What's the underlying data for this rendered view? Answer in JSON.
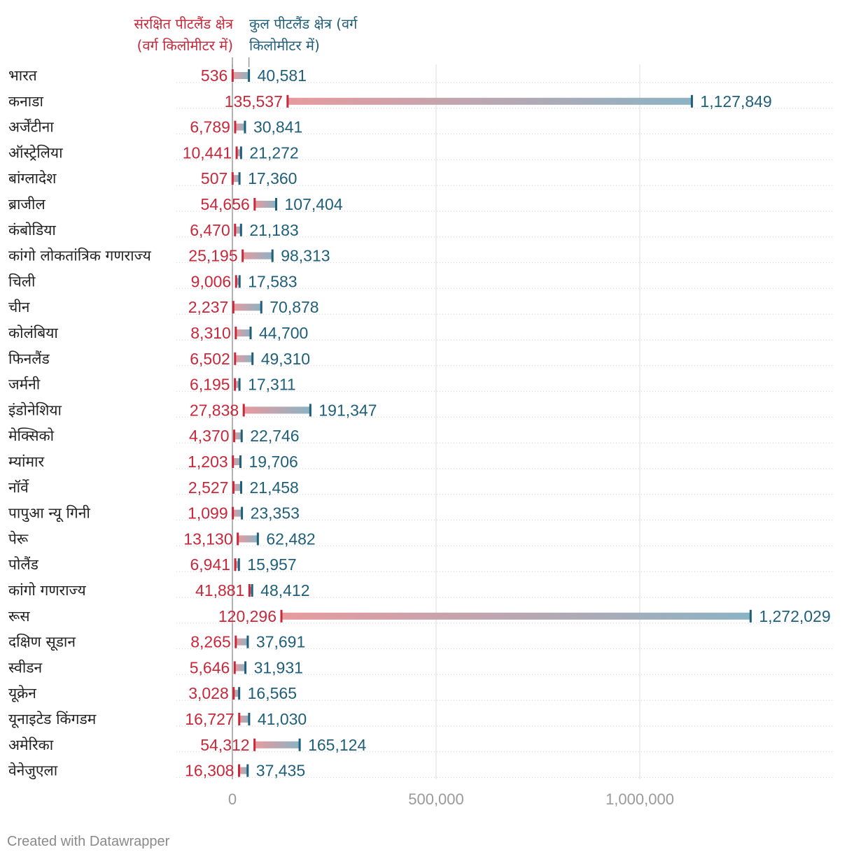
{
  "chart_data": {
    "type": "range-dot",
    "legend": {
      "protected_line1": "संरक्षित पीटलैंड क्षेत्र",
      "protected_line2": "(वर्ग किलोमीटर में)",
      "total_line1": "कुल पीटलैंड क्षेत्र (वर्ग",
      "total_line2": "किलोमीटर में)"
    },
    "series": [
      {
        "name": "संरक्षित पीटलैंड क्षेत्र (वर्ग किलोमीटर में)",
        "key": "protected"
      },
      {
        "name": "कुल पीटलैंड क्षेत्र (वर्ग किलोमीटर में)",
        "key": "total"
      }
    ],
    "xlim": [
      0,
      1470000
    ],
    "xticks": [
      0,
      500000,
      1000000
    ],
    "xtick_labels": [
      "0",
      "500,000",
      "1,000,000"
    ],
    "colors": {
      "protected": "#c8283a",
      "total": "#1f5f7a",
      "protected_light": "#e89a9e",
      "total_light": "#8bb3c4"
    },
    "rows": [
      {
        "country": "भारत",
        "protected": 536,
        "total": 40581,
        "protected_label": "536",
        "total_label": "40,581"
      },
      {
        "country": "कनाडा",
        "protected": 135537,
        "total": 1127849,
        "protected_label": "135,537",
        "total_label": "1,127,849"
      },
      {
        "country": "अर्जेंटीना",
        "protected": 6789,
        "total": 30841,
        "protected_label": "6,789",
        "total_label": "30,841"
      },
      {
        "country": "ऑस्ट्रेलिया",
        "protected": 10441,
        "total": 21272,
        "protected_label": "10,441",
        "total_label": "21,272"
      },
      {
        "country": "बांग्लादेश",
        "protected": 507,
        "total": 17360,
        "protected_label": "507",
        "total_label": "17,360"
      },
      {
        "country": "ब्राजील",
        "protected": 54656,
        "total": 107404,
        "protected_label": "54,656",
        "total_label": "107,404"
      },
      {
        "country": "कंबोडिया",
        "protected": 6470,
        "total": 21183,
        "protected_label": "6,470",
        "total_label": "21,183"
      },
      {
        "country": "कांगो लोकतांत्रिक गणराज्य",
        "protected": 25195,
        "total": 98313,
        "protected_label": "25,195",
        "total_label": "98,313"
      },
      {
        "country": "चिली",
        "protected": 9006,
        "total": 17583,
        "protected_label": "9,006",
        "total_label": "17,583"
      },
      {
        "country": "चीन",
        "protected": 2237,
        "total": 70878,
        "protected_label": "2,237",
        "total_label": "70,878"
      },
      {
        "country": "कोलंबिया",
        "protected": 8310,
        "total": 44700,
        "protected_label": "8,310",
        "total_label": "44,700"
      },
      {
        "country": "फिनलैंड",
        "protected": 6502,
        "total": 49310,
        "protected_label": "6,502",
        "total_label": "49,310"
      },
      {
        "country": "जर्मनी",
        "protected": 6195,
        "total": 17311,
        "protected_label": "6,195",
        "total_label": "17,311"
      },
      {
        "country": "इंडोनेशिया",
        "protected": 27838,
        "total": 191347,
        "protected_label": "27,838",
        "total_label": "191,347"
      },
      {
        "country": "मेक्सिको",
        "protected": 4370,
        "total": 22746,
        "protected_label": "4,370",
        "total_label": "22,746"
      },
      {
        "country": "म्यांमार",
        "protected": 1203,
        "total": 19706,
        "protected_label": "1,203",
        "total_label": "19,706"
      },
      {
        "country": "नॉर्वे",
        "protected": 2527,
        "total": 21458,
        "protected_label": "2,527",
        "total_label": "21,458"
      },
      {
        "country": "पापुआ न्यू गिनी",
        "protected": 1099,
        "total": 23353,
        "protected_label": "1,099",
        "total_label": "23,353"
      },
      {
        "country": "पेरू",
        "protected": 13130,
        "total": 62482,
        "protected_label": "13,130",
        "total_label": "62,482"
      },
      {
        "country": "पोलैंड",
        "protected": 6941,
        "total": 15957,
        "protected_label": "6,941",
        "total_label": "15,957"
      },
      {
        "country": "कांगो गणराज्य",
        "protected": 41881,
        "total": 48412,
        "protected_label": "41,881",
        "total_label": "48,412"
      },
      {
        "country": "रूस",
        "protected": 120296,
        "total": 1272029,
        "protected_label": "120,296",
        "total_label": "1,272,029"
      },
      {
        "country": "दक्षिण सूडान",
        "protected": 8265,
        "total": 37691,
        "protected_label": "8,265",
        "total_label": "37,691"
      },
      {
        "country": "स्वीडन",
        "protected": 5646,
        "total": 31931,
        "protected_label": "5,646",
        "total_label": "31,931"
      },
      {
        "country": "यूक्रेन",
        "protected": 3028,
        "total": 16565,
        "protected_label": "3,028",
        "total_label": "16,565"
      },
      {
        "country": "यूनाइटेड किंगडम",
        "protected": 16727,
        "total": 41030,
        "protected_label": "16,727",
        "total_label": "41,030"
      },
      {
        "country": "अमेरिका",
        "protected": 54312,
        "total": 165124,
        "protected_label": "54,312",
        "total_label": "165,124"
      },
      {
        "country": "वेनेजुएला",
        "protected": 16308,
        "total": 37435,
        "protected_label": "16,308",
        "total_label": "37,435"
      }
    ]
  },
  "footer": {
    "credit": "Created with Datawrapper"
  }
}
